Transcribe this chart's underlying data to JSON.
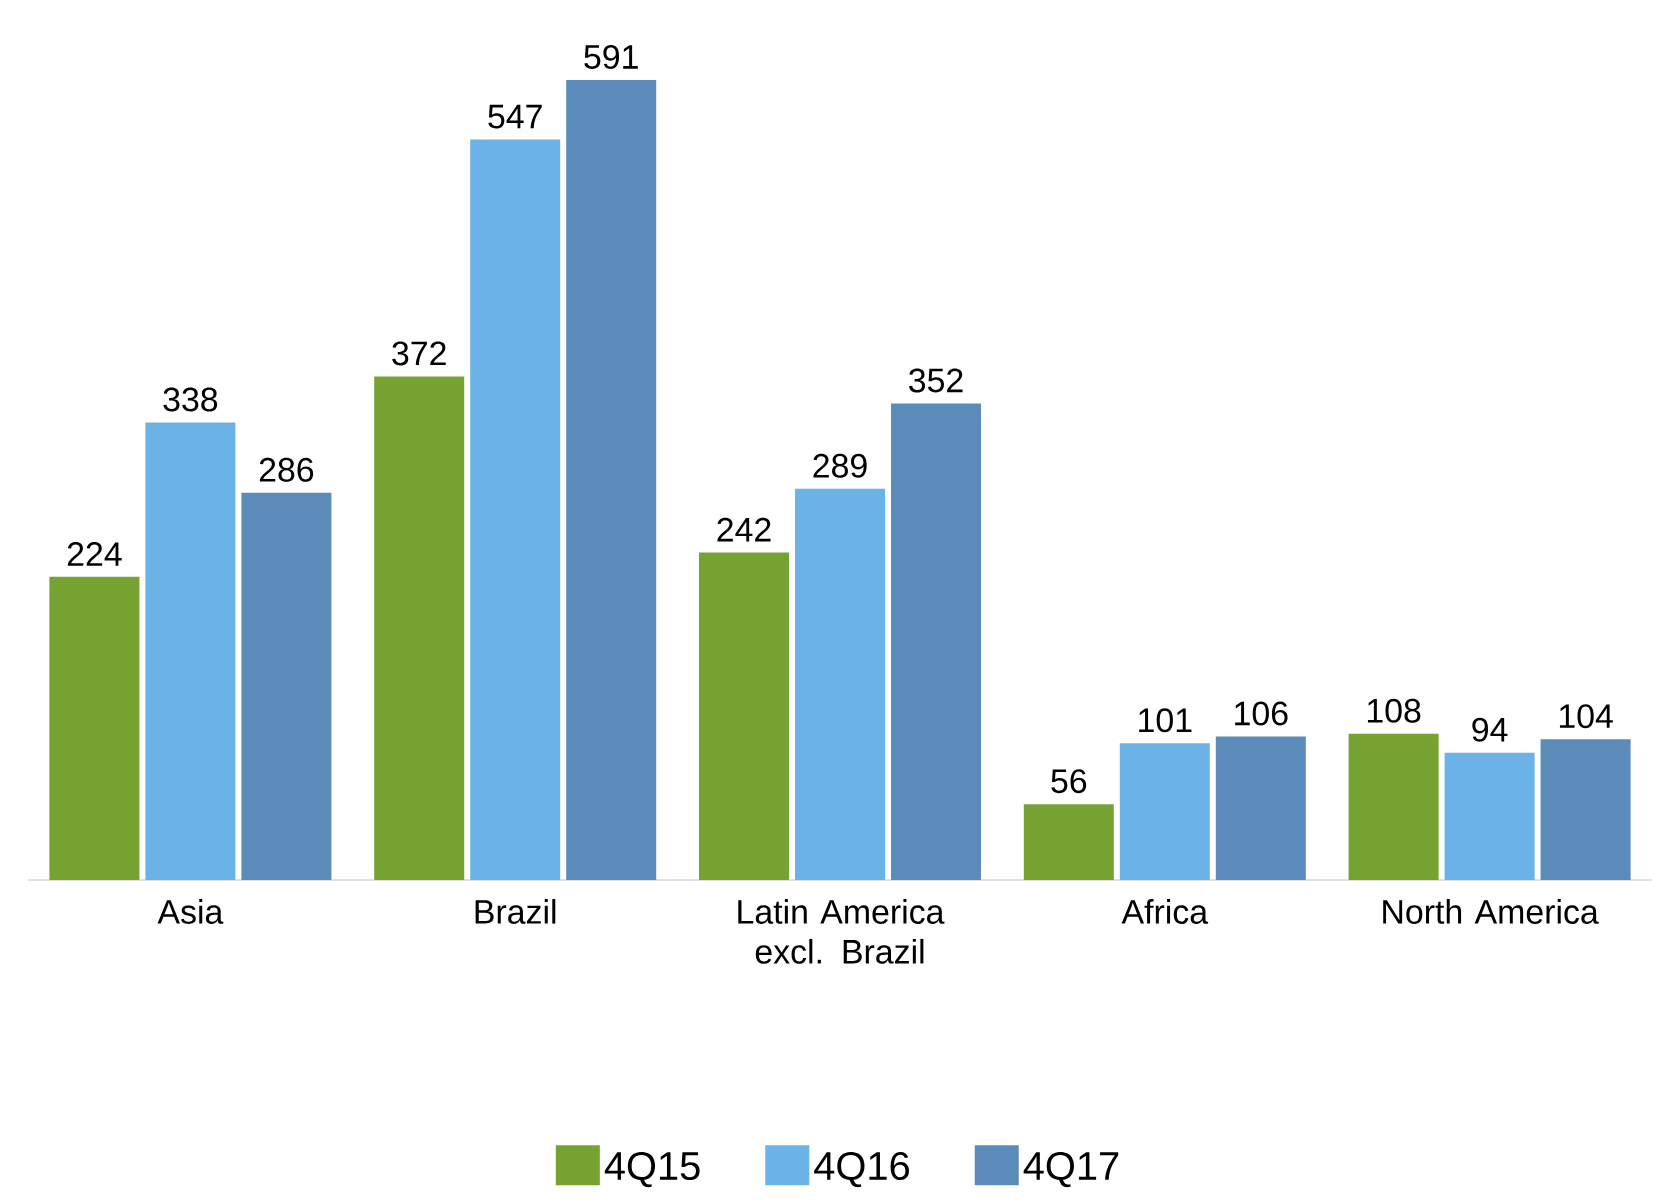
{
  "chart_data": {
    "type": "bar",
    "categories": [
      "Asia",
      "Brazil",
      "Latin America excl. Brazil",
      "Africa",
      "North America"
    ],
    "series": [
      {
        "name": "4Q15",
        "color": "#76a232",
        "values": [
          224,
          372,
          242,
          56,
          108
        ]
      },
      {
        "name": "4Q16",
        "color": "#6bb3e6",
        "values": [
          338,
          547,
          289,
          101,
          94
        ]
      },
      {
        "name": "4Q17",
        "color": "#5b8bb8",
        "values": [
          286,
          591,
          352,
          106,
          104
        ]
      }
    ],
    "data_labels": true,
    "legend": "bottom"
  }
}
